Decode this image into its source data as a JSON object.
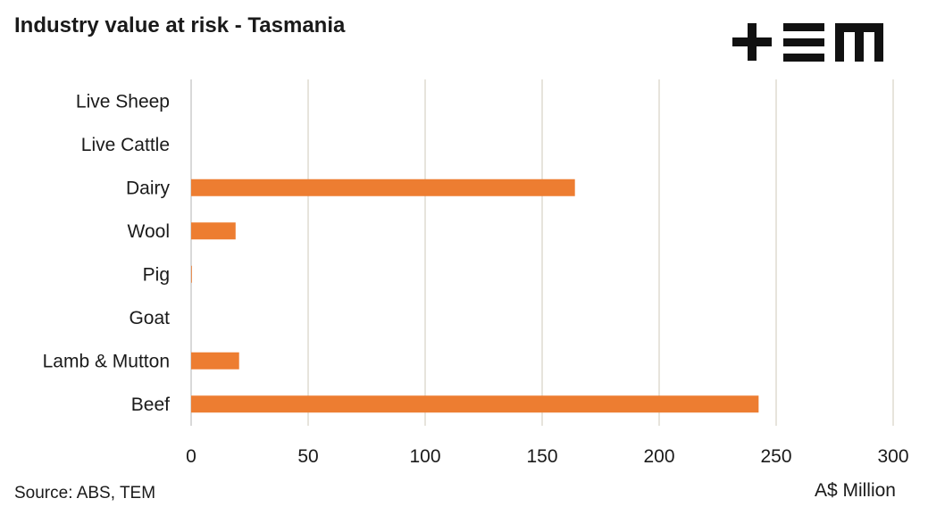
{
  "chart_data": {
    "type": "bar",
    "orientation": "horizontal",
    "title": "Industry value at risk - Tasmania",
    "categories": [
      "Live Sheep",
      "Live Cattle",
      "Dairy",
      "Wool",
      "Pig",
      "Goat",
      "Lamb & Mutton",
      "Beef"
    ],
    "values": [
      0,
      0,
      164,
      19,
      0.3,
      0,
      20.5,
      242.5
    ],
    "xlabel": "A$ Million",
    "ylabel": "",
    "xlim": [
      0,
      300
    ],
    "xticks": [
      0,
      50,
      100,
      150,
      200,
      250,
      300
    ],
    "grid": "vertical",
    "bar_color": "#ED7D31",
    "grid_color": "#E7E4DC",
    "source": "Source: ABS, TEM"
  },
  "logo": {
    "name": "tem-logo",
    "text": "TEM"
  }
}
